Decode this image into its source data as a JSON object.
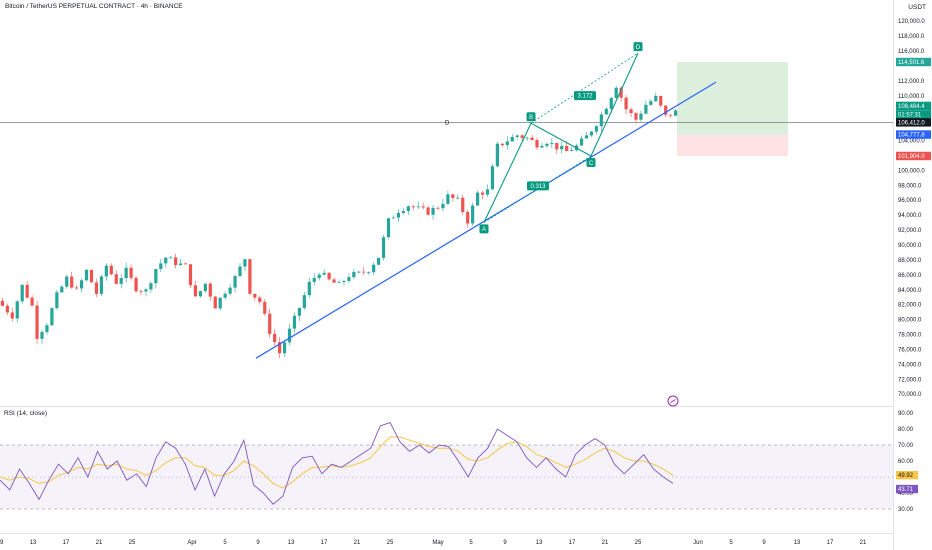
{
  "header": {
    "title": "Bitcoin / TetherUS PERPETUAL CONTRACT · 4h · BINANCE",
    "currency": "USDT"
  },
  "colors": {
    "up": "#26a69a",
    "down": "#ef5350",
    "trendline": "#2962ff",
    "pattern": "#089981",
    "rsi_line": "#7e57c2",
    "rsi_ma": "#f7c548",
    "profit_zone": "#dcefdc",
    "loss_zone": "#fde3e3"
  },
  "chart_data": [
    {
      "type": "candlestick",
      "ylim": [
        68000,
        122000
      ],
      "y_ticks": [
        "120,000.0",
        "118,000.0",
        "116,000.0",
        "112,000.0",
        "110,000.0",
        "104,000.0",
        "102,000.0",
        "100,000.0",
        "98,000.0",
        "96,000.0",
        "94,000.0",
        "92,000.0",
        "90,000.0",
        "88,000.0",
        "86,000.0",
        "84,000.0",
        "82,000.0",
        "80,000.0",
        "78,000.0",
        "76,000.0",
        "74,000.0",
        "72,000.0",
        "70,000.0"
      ],
      "x_ticks": [
        "9",
        "13",
        "17",
        "21",
        "25",
        "Apr",
        "5",
        "9",
        "13",
        "17",
        "21",
        "25",
        "May",
        "5",
        "9",
        "13",
        "17",
        "21",
        "25",
        "Jun",
        "5",
        "9",
        "13",
        "17",
        "21"
      ],
      "price_path": [
        [
          0,
          82500
        ],
        [
          3,
          80500
        ],
        [
          5,
          84500
        ],
        [
          7,
          81800
        ],
        [
          8,
          77800
        ],
        [
          10,
          79500
        ],
        [
          12,
          83200
        ],
        [
          14,
          85500
        ],
        [
          16,
          83800
        ],
        [
          18,
          86500
        ],
        [
          20,
          83500
        ],
        [
          22,
          87200
        ],
        [
          24,
          85000
        ],
        [
          26,
          86500
        ],
        [
          28,
          84200
        ],
        [
          30,
          83800
        ],
        [
          32,
          86800
        ],
        [
          34,
          88300
        ],
        [
          36,
          87600
        ],
        [
          38,
          87100
        ],
        [
          40,
          82800
        ],
        [
          42,
          84800
        ],
        [
          44,
          81800
        ],
        [
          46,
          83800
        ],
        [
          48,
          85600
        ],
        [
          50,
          88200
        ],
        [
          51,
          83800
        ],
        [
          53,
          82400
        ],
        [
          55,
          78400
        ],
        [
          57,
          75500
        ],
        [
          59,
          78500
        ],
        [
          61,
          81600
        ],
        [
          63,
          84800
        ],
        [
          65,
          86400
        ],
        [
          67,
          85200
        ],
        [
          69,
          84600
        ],
        [
          71,
          85900
        ],
        [
          73,
          86100
        ],
        [
          75,
          86700
        ],
        [
          77,
          88400
        ],
        [
          79,
          93200
        ],
        [
          81,
          94600
        ],
        [
          83,
          95300
        ],
        [
          85,
          94800
        ],
        [
          87,
          94400
        ],
        [
          89,
          95100
        ],
        [
          91,
          96500
        ],
        [
          93,
          95900
        ],
        [
          95,
          93200
        ],
        [
          97,
          96900
        ],
        [
          99,
          97200
        ],
        [
          101,
          103200
        ],
        [
          103,
          104000
        ],
        [
          105,
          104700
        ],
        [
          107,
          104300
        ],
        [
          109,
          103500
        ],
        [
          111,
          103900
        ],
        [
          113,
          103100
        ],
        [
          115,
          102500
        ],
        [
          117,
          103200
        ],
        [
          119,
          104500
        ],
        [
          121,
          106300
        ],
        [
          123,
          108600
        ],
        [
          125,
          111400
        ],
        [
          127,
          108200
        ],
        [
          129,
          106800
        ],
        [
          131,
          108800
        ],
        [
          133,
          109700
        ],
        [
          135,
          107200
        ],
        [
          137,
          107800
        ]
      ],
      "price_labels": [
        {
          "text": "114,501.6",
          "value": 114501.6,
          "color": "#26a69a"
        },
        {
          "text": "108,484.4",
          "value": 108484.4,
          "color": "#089981"
        },
        {
          "text": "01:57:31",
          "value": 107800,
          "color": "#089981"
        },
        {
          "text": "106,412.0",
          "value": 106412.0,
          "color": "#131722"
        },
        {
          "text": "104,777.8",
          "value": 104777.8,
          "color": "#2962ff"
        },
        {
          "text": "101,904.0",
          "value": 101904.0,
          "color": "#ef5350"
        }
      ],
      "horizontal_line": {
        "value": 106412.0,
        "label": "D"
      },
      "position_tool": {
        "entry": 104777.8,
        "target": 114501.6,
        "stop": 101904.0
      },
      "harmonic_points": [
        {
          "label": "A",
          "value": 93000
        },
        {
          "label": "B",
          "value": 106300
        },
        {
          "label": "C",
          "value": 101900
        },
        {
          "label": "D",
          "value": 115700
        }
      ],
      "fib_ratios": [
        {
          "text": "0.313"
        },
        {
          "text": "3.172"
        }
      ]
    },
    {
      "type": "line",
      "title": "RSI (14, close)",
      "ylim": [
        25,
        92
      ],
      "y_ticks": [
        "90.00",
        "80.00",
        "70.00",
        "60.00",
        "50.00",
        "40.00",
        "30.00"
      ],
      "bands": [
        30,
        70
      ],
      "current_labels": [
        {
          "text": "49.92",
          "value": 49.92,
          "color": "#f7c548"
        },
        {
          "text": "43.71",
          "value": 43.71,
          "color": "#7e57c2"
        }
      ],
      "series": [
        {
          "values": [
            48,
            42,
            55,
            46,
            36,
            48,
            58,
            52,
            62,
            50,
            66,
            55,
            60,
            48,
            52,
            44,
            62,
            72,
            68,
            58,
            42,
            55,
            38,
            52,
            60,
            73,
            45,
            40,
            33,
            38,
            56,
            62,
            63,
            52,
            58,
            56,
            60,
            64,
            68,
            82,
            84,
            72,
            66,
            70,
            65,
            70,
            69,
            60,
            50,
            62,
            68,
            80,
            76,
            72,
            62,
            56,
            62,
            55,
            50,
            64,
            70,
            74,
            70,
            58,
            52,
            58,
            64,
            55,
            50,
            46
          ]
        },
        {
          "values": [
            50,
            48,
            50,
            49,
            46,
            47,
            51,
            53,
            56,
            55,
            58,
            57,
            58,
            55,
            54,
            51,
            54,
            59,
            62,
            62,
            57,
            56,
            51,
            51,
            54,
            60,
            57,
            52,
            46,
            43,
            47,
            52,
            56,
            56,
            57,
            56,
            57,
            59,
            62,
            69,
            75,
            75,
            73,
            71,
            69,
            68,
            68,
            66,
            61,
            60,
            62,
            67,
            71,
            72,
            69,
            64,
            62,
            59,
            56,
            58,
            61,
            65,
            68,
            66,
            62,
            60,
            60,
            58,
            55,
            51
          ]
        }
      ]
    }
  ]
}
